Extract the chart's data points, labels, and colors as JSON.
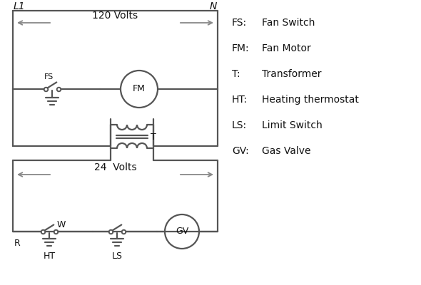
{
  "bg_color": "#ffffff",
  "line_color": "#555555",
  "arrow_color": "#888888",
  "text_color": "#111111",
  "legend_items": [
    [
      "FS:",
      "Fan Switch"
    ],
    [
      "FM:",
      "Fan Motor"
    ],
    [
      "T:",
      "Transformer"
    ],
    [
      "HT:",
      "Heating thermostat"
    ],
    [
      "LS:",
      "Limit Switch"
    ],
    [
      "GV:",
      "Gas Valve"
    ]
  ],
  "label_L1": "L1",
  "label_N": "N",
  "label_120V": "120 Volts",
  "label_24V": "24  Volts",
  "label_T": "T",
  "label_R": "R",
  "label_W": "W",
  "label_HT": "HT",
  "label_LS": "LS",
  "label_FS": "FS",
  "label_FM": "FM",
  "label_GV": "GV"
}
